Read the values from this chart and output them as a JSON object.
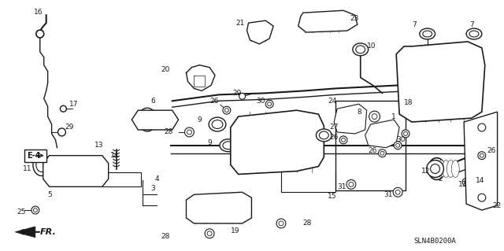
{
  "bg_color": "#f5f5f5",
  "fig_width": 6.4,
  "fig_height": 3.19,
  "dpi": 100,
  "diagram_code": "SLN4B0200A",
  "fr_label": "FR.",
  "line_color": "#1a1a1a",
  "text_color": "#1a1a1a",
  "font_size_labels": 6.5,
  "font_size_code": 6.5,
  "font_size_fr": 8,
  "font_size_e4": 7
}
